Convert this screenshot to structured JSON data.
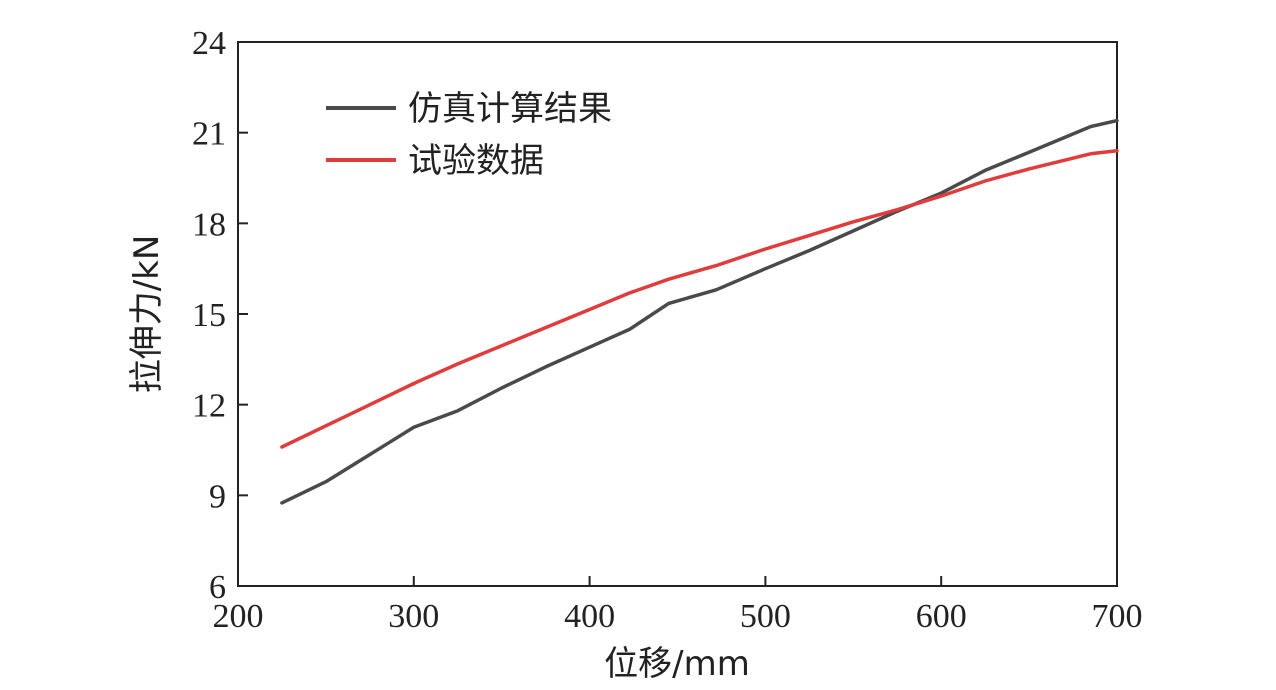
{
  "chart_data": {
    "type": "line",
    "title": "",
    "xlabel": "位移/mm",
    "ylabel": "拉伸力/kN",
    "xlim": [
      200,
      700
    ],
    "ylim": [
      6,
      24
    ],
    "xticks": [
      200,
      300,
      400,
      500,
      600,
      700
    ],
    "yticks": [
      6,
      9,
      12,
      15,
      18,
      21,
      24
    ],
    "grid": false,
    "legend_position": "top-left",
    "series": [
      {
        "name": "仿真计算结果",
        "color": "#4a4a4a",
        "x": [
          225,
          250,
          275,
          300,
          325,
          350,
          375,
          400,
          423,
          445,
          472,
          500,
          525,
          550,
          575,
          600,
          625,
          650,
          685,
          700
        ],
        "y": [
          8.75,
          9.45,
          10.35,
          11.25,
          11.8,
          12.55,
          13.25,
          13.9,
          14.5,
          15.35,
          15.8,
          16.5,
          17.1,
          17.75,
          18.4,
          19.0,
          19.75,
          20.35,
          21.2,
          21.4
        ]
      },
      {
        "name": "试验数据",
        "color": "#e03c3c",
        "x": [
          225,
          250,
          275,
          300,
          325,
          350,
          375,
          400,
          423,
          445,
          472,
          500,
          525,
          550,
          575,
          600,
          625,
          650,
          685,
          700
        ],
        "y": [
          10.6,
          11.3,
          12.0,
          12.7,
          13.35,
          13.95,
          14.55,
          15.15,
          15.7,
          16.15,
          16.6,
          17.15,
          17.6,
          18.05,
          18.45,
          18.9,
          19.4,
          19.8,
          20.3,
          20.4
        ]
      }
    ]
  }
}
